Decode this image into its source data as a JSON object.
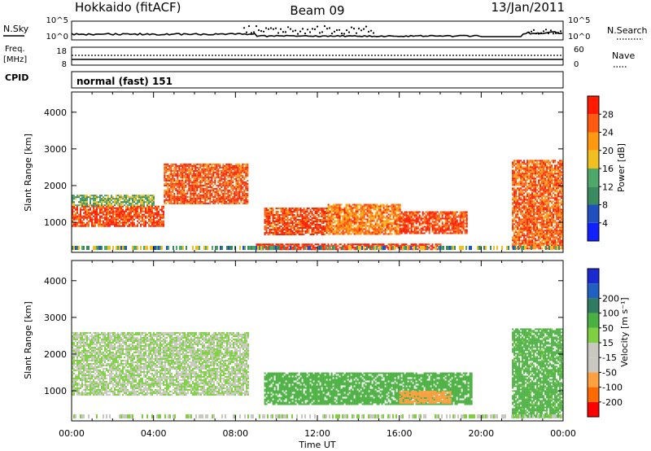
{
  "header": {
    "station": "Hokkaido (fitACF)",
    "beam": "Beam 09",
    "date": "13/Jan/2011"
  },
  "nsky_panel": {
    "label": "N.Sky",
    "right_label": "N.Search",
    "tick_top": "10^5",
    "tick_bottom": "10^0"
  },
  "freq_panel": {
    "label_line1": "Freq.",
    "label_line2": "[MHz]",
    "tick_top_left": "18",
    "tick_bottom_left": "8",
    "tick_top_right": "60",
    "tick_bottom_right": "0",
    "right_label": "Nave"
  },
  "cpid": {
    "label": "CPID",
    "value": "normal (fast) 151"
  },
  "colors": {
    "power_scale": [
      "#1020ff",
      "#2050c0",
      "#3a8a60",
      "#4ea86a",
      "#f0c020",
      "#ff9a10",
      "#ff5a10",
      "#ff1a00"
    ],
    "velocity_scale": [
      "#ff0000",
      "#ff6a00",
      "#ffa040",
      "#c8c8c0",
      "#c8c8c0",
      "#7ed040",
      "#4ab040",
      "#2f7a60",
      "#2060c0",
      "#1a2ad0"
    ]
  },
  "chart_data": [
    {
      "type": "heatmap",
      "panel": "power",
      "ylabel": "Slant Range [km]",
      "yticks": [
        1000,
        2000,
        3000,
        4000
      ],
      "ylim": [
        180,
        4550
      ],
      "x_ticks": [
        "00:00",
        "04:00",
        "08:00",
        "12:00",
        "16:00",
        "20:00",
        "00:00"
      ],
      "xlim_hours": [
        0,
        24
      ],
      "colorbar": {
        "label": "Power [dB]",
        "ticks": [
          4,
          8,
          12,
          16,
          20,
          24,
          28
        ],
        "range": [
          0,
          32
        ]
      },
      "features": [
        {
          "t_start": 0.0,
          "t_end": 4.5,
          "range_km": [
            900,
            1450
          ],
          "value": 28
        },
        {
          "t_start": 0.0,
          "t_end": 4.0,
          "range_km": [
            1450,
            1750
          ],
          "value": 14
        },
        {
          "t_start": 4.5,
          "t_end": 8.6,
          "range_km": [
            1500,
            2600
          ],
          "value": 27
        },
        {
          "t_start": 9.4,
          "t_end": 12.5,
          "range_km": [
            650,
            1400
          ],
          "value": 28
        },
        {
          "t_start": 12.5,
          "t_end": 16.0,
          "range_km": [
            700,
            1500
          ],
          "value": 24
        },
        {
          "t_start": 16.0,
          "t_end": 19.3,
          "range_km": [
            700,
            1300
          ],
          "value": 28
        },
        {
          "t_start": 9.0,
          "t_end": 18.0,
          "range_km": [
            280,
            420
          ],
          "value": 30
        },
        {
          "t_start": 21.5,
          "t_end": 24.0,
          "range_km": [
            280,
            2700
          ],
          "value": 26
        }
      ]
    },
    {
      "type": "heatmap",
      "panel": "velocity",
      "ylabel": "Slant Range [km]",
      "yticks": [
        1000,
        2000,
        3000,
        4000
      ],
      "ylim": [
        180,
        4550
      ],
      "x_ticks": [
        "00:00",
        "04:00",
        "08:00",
        "12:00",
        "16:00",
        "20:00",
        "00:00"
      ],
      "xlim_hours": [
        0,
        24
      ],
      "xlabel": "Time UT",
      "colorbar": {
        "label": "Velocity [m s⁻¹]",
        "ticks": [
          -200,
          -100,
          -50,
          -15,
          15,
          50,
          100,
          200
        ],
        "tick_labels": [
          "-200",
          "-100",
          "-50",
          "-15",
          "15",
          "50",
          "100",
          "200"
        ]
      },
      "features": [
        {
          "t_start": 0.0,
          "t_end": 8.6,
          "range_km": [
            900,
            2600
          ],
          "value": 0
        },
        {
          "t_start": 9.4,
          "t_end": 19.5,
          "range_km": [
            650,
            1500
          ],
          "value": 40
        },
        {
          "t_start": 16.0,
          "t_end": 18.5,
          "range_km": [
            650,
            1000
          ],
          "value": -60
        },
        {
          "t_start": 21.5,
          "t_end": 24.0,
          "range_km": [
            300,
            2700
          ],
          "value": 20
        }
      ]
    }
  ]
}
